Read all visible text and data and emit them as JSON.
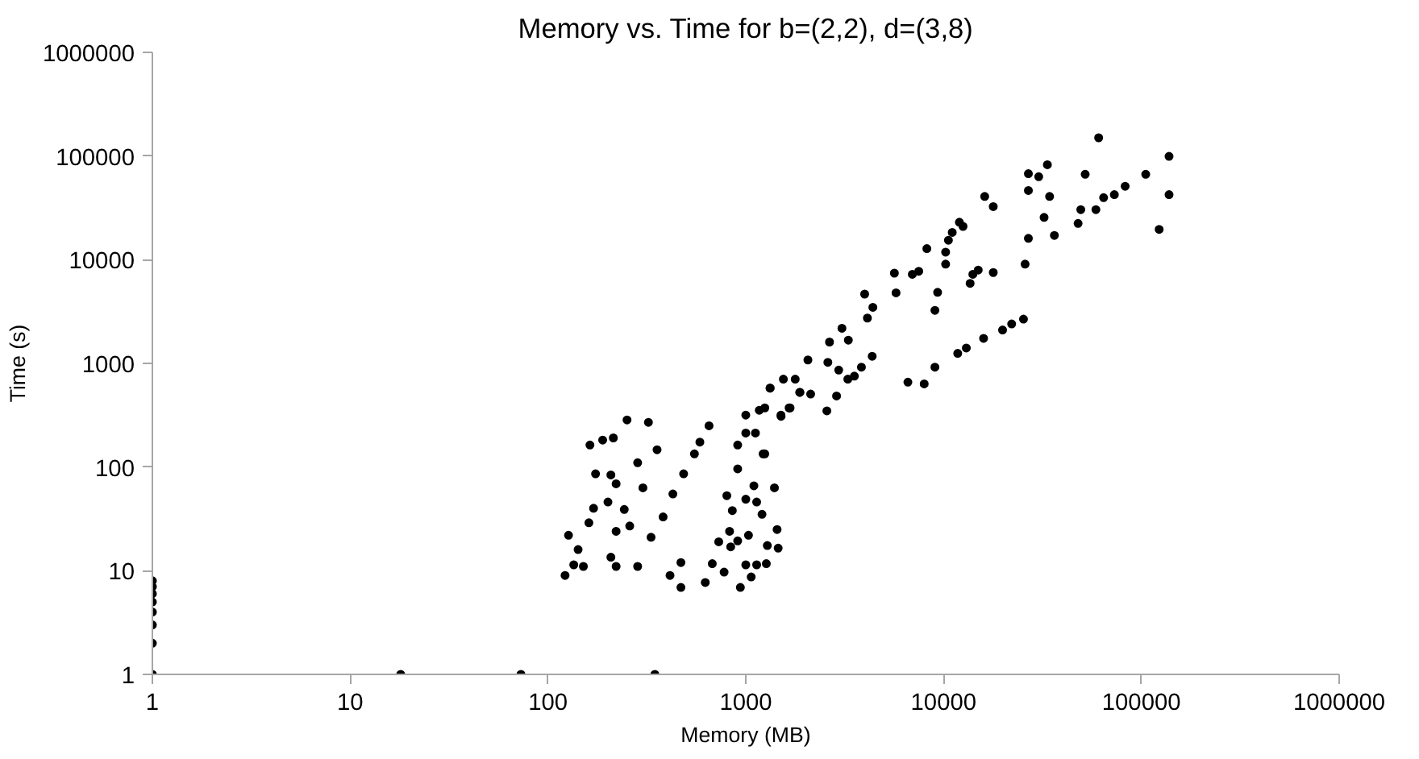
{
  "chart_data": {
    "type": "scatter",
    "title": "Memory vs. Time for b=(2,2), d=(3,8)",
    "xlabel": "Memory (MB)",
    "ylabel": "Time (s)",
    "log": "xy",
    "grid": false,
    "marker": "circle",
    "xlim": [
      1,
      1000000
    ],
    "ylim": [
      1,
      1000000
    ],
    "xticks": [
      1,
      10,
      100,
      1000,
      10000,
      100000,
      1000000
    ],
    "yticks": [
      1,
      10,
      100,
      1000,
      10000,
      100000,
      1000000
    ],
    "series": [
      {
        "color": "#000000",
        "x": [
          1,
          1,
          1,
          1,
          1,
          1,
          1,
          1,
          18,
          73,
          347,
          122,
          135,
          151,
          127,
          142,
          161,
          170,
          174,
          163,
          189,
          214,
          251,
          322,
          356,
          284,
          208,
          221,
          201,
          243,
          259,
          221,
          208,
          221,
          284,
          332,
          302,
          382,
          428,
          485,
          550,
          586,
          652,
          414,
          470,
          470,
          624,
          677,
          777,
          939,
          1000,
          1135,
          1270,
          1065,
          730,
          828,
          839,
          910,
          1032,
          1285,
          1458,
          1440,
          802,
          855,
          1000,
          1135,
          1208,
          1396,
          1099,
          910,
          910,
          1000,
          1119,
          1223,
          1000,
          1170,
          1506,
          1675,
          1876,
          1327,
          1248,
          1248,
          1327,
          1508,
          1656,
          1549,
          1778,
          1876,
          2128,
          2061,
          2570,
          2877,
          2600,
          2950,
          3280,
          3540,
          3843,
          4356,
          2650,
          3063,
          3300,
          3990,
          4120,
          4390,
          5640,
          5750,
          6950,
          7490,
          8230,
          9040,
          9330,
          10240,
          10240,
          10580,
          11060,
          12020,
          12540,
          6600,
          7980,
          9040,
          11790,
          13030,
          13620,
          14060,
          14970,
          16140,
          15930,
          17830,
          17830,
          19870,
          22090,
          25350,
          25830,
          26840,
          26840,
          26840,
          30270,
          32220,
          33480,
          34350,
          36320,
          47860,
          49400,
          51990,
          58890,
          60810,
          64420,
          73000,
          82790,
          105200,
          123000,
          138000,
          138000
        ],
        "values": [
          1,
          2,
          3,
          4,
          5,
          6,
          7,
          8,
          1,
          1,
          1,
          9,
          11.4,
          11,
          22,
          16,
          29,
          40,
          86,
          163,
          182,
          191,
          285,
          270,
          147,
          110,
          84,
          69,
          46,
          39,
          27,
          24,
          13.5,
          11,
          11,
          21,
          63,
          33,
          55,
          86,
          134,
          174,
          250,
          9,
          12,
          6.9,
          7.7,
          11.7,
          9.7,
          6.9,
          11.4,
          11.4,
          11.7,
          8.7,
          19,
          24,
          17,
          19.4,
          22,
          17.5,
          16.5,
          25,
          53,
          38,
          49,
          46,
          35,
          63,
          66,
          96,
          163,
          213,
          213,
          134,
          317,
          353,
          317,
          372,
          526,
          577,
          134,
          372,
          577,
          309,
          372,
          705,
          705,
          526,
          506,
          1079,
          348,
          485,
          1023,
          861,
          705,
          753,
          920,
          1170,
          1607,
          2183,
          1675,
          4660,
          2737,
          3474,
          7420,
          4790,
          7230,
          7730,
          12800,
          3250,
          4850,
          11830,
          9060,
          15420,
          18330,
          23000,
          20950,
          659,
          634,
          920,
          1250,
          1407,
          5920,
          7230,
          7940,
          40740,
          1742,
          7520,
          32500,
          2100,
          2400,
          2670,
          9060,
          16070,
          46560,
          67600,
          63200,
          25590,
          82400,
          40740,
          17170,
          22390,
          30400,
          66700,
          30400,
          150000,
          39700,
          42400,
          51100,
          66700,
          19600,
          99300,
          42400
        ]
      }
    ]
  }
}
